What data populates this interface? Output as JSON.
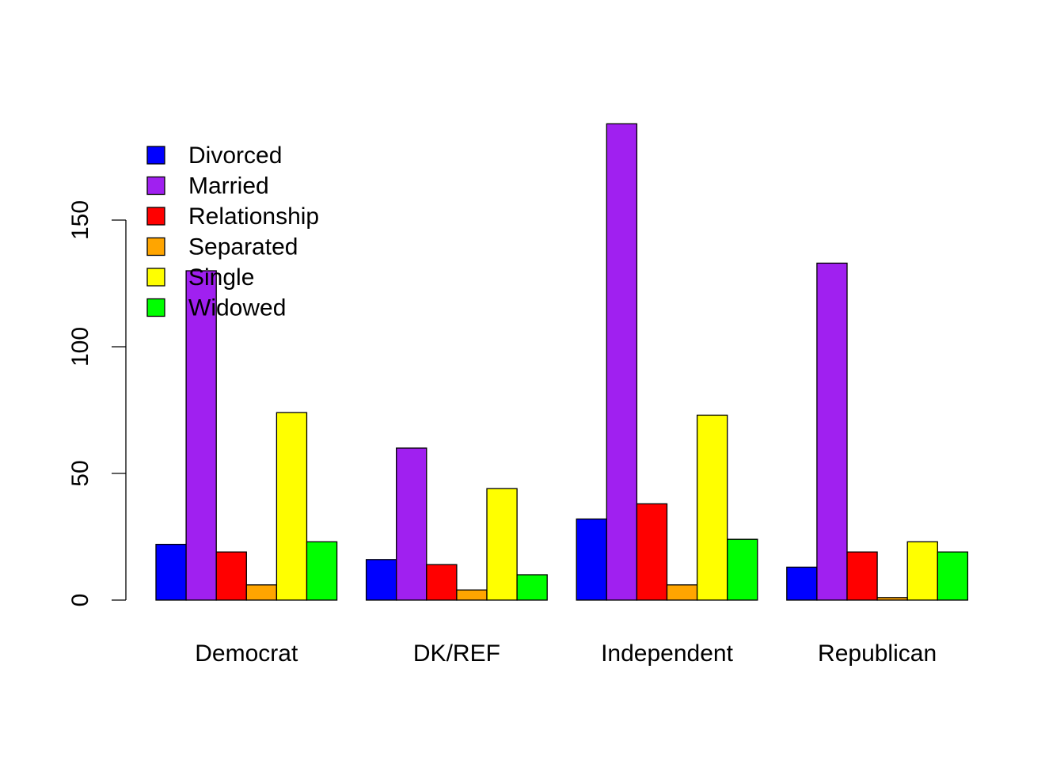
{
  "chart_data": {
    "type": "bar",
    "grouping": "grouped",
    "title": "",
    "xlabel": "",
    "ylabel": "",
    "categories": [
      "Democrat",
      "DK/REF",
      "Independent",
      "Republican"
    ],
    "ylim": [
      0,
      188
    ],
    "yticks": [
      0,
      50,
      100,
      150
    ],
    "ytick_labels": [
      "0",
      "50",
      "100",
      "150"
    ],
    "grid": false,
    "legend": {
      "position": "top-left",
      "border": false
    },
    "series": [
      {
        "name": "Divorced",
        "color": "#0000FF",
        "values": [
          22,
          16,
          32,
          13
        ]
      },
      {
        "name": "Married",
        "color": "#A020F0",
        "values": [
          130,
          60,
          188,
          133
        ]
      },
      {
        "name": "Relationship",
        "color": "#FF0000",
        "values": [
          19,
          14,
          38,
          19
        ]
      },
      {
        "name": "Separated",
        "color": "#FFA500",
        "values": [
          6,
          4,
          6,
          1
        ]
      },
      {
        "name": "Single",
        "color": "#FFFF00",
        "values": [
          74,
          44,
          73,
          23
        ]
      },
      {
        "name": "Widowed",
        "color": "#00FF00",
        "values": [
          23,
          10,
          24,
          19
        ]
      }
    ]
  }
}
